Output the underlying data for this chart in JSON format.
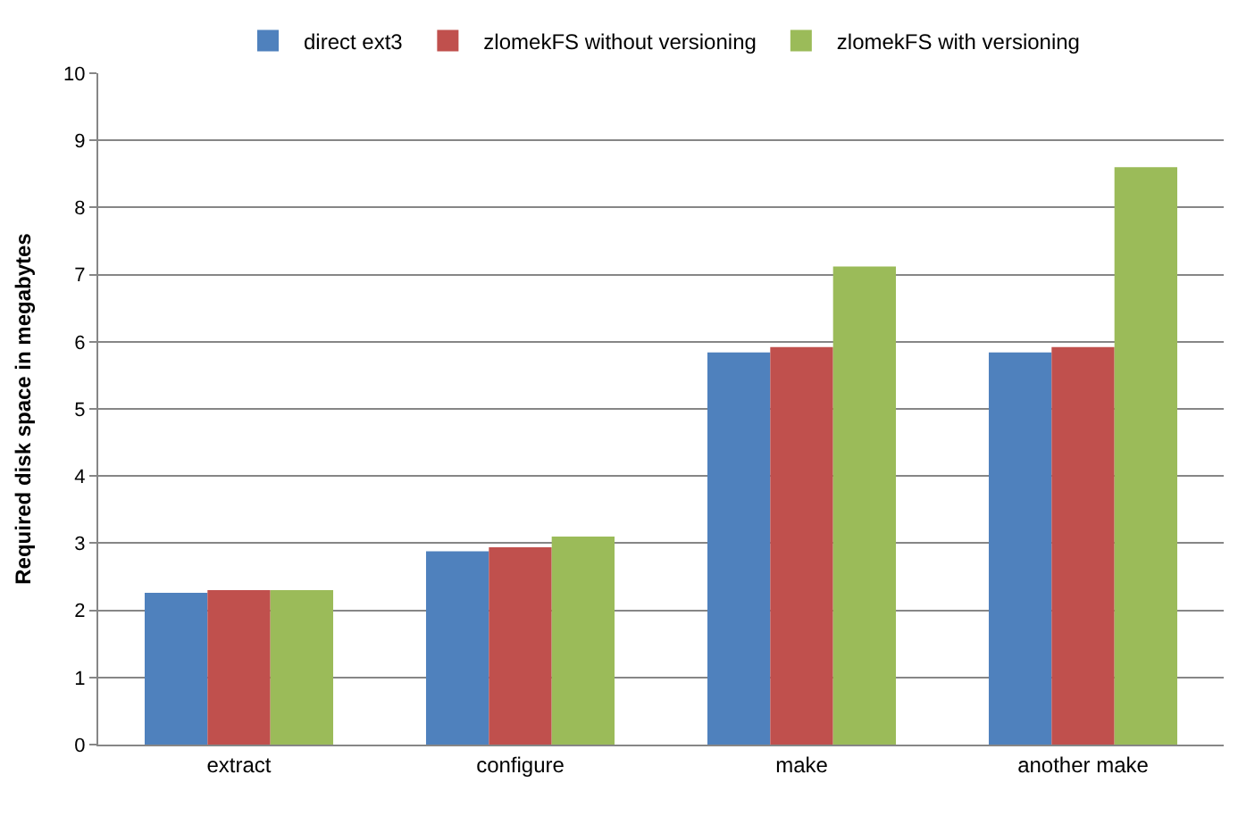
{
  "chart_data": {
    "type": "bar",
    "ylabel": "Required disk space in megabytes",
    "categories": [
      "extract",
      "configure",
      "make",
      "another make"
    ],
    "series": [
      {
        "name": "direct ext3",
        "color": "#4f81bd",
        "values": [
          2.26,
          2.88,
          5.84,
          5.84
        ]
      },
      {
        "name": "zlomekFS without versioning",
        "color": "#c0504d",
        "values": [
          2.3,
          2.94,
          5.92,
          5.92
        ]
      },
      {
        "name": "zlomekFS with versioning",
        "color": "#9bbb59",
        "values": [
          2.3,
          3.1,
          7.12,
          8.6
        ]
      }
    ],
    "ylim": [
      0,
      10
    ],
    "yticks": [
      0,
      1,
      2,
      3,
      4,
      5,
      6,
      7,
      8,
      9,
      10
    ],
    "grid": "y",
    "legend": "top"
  }
}
